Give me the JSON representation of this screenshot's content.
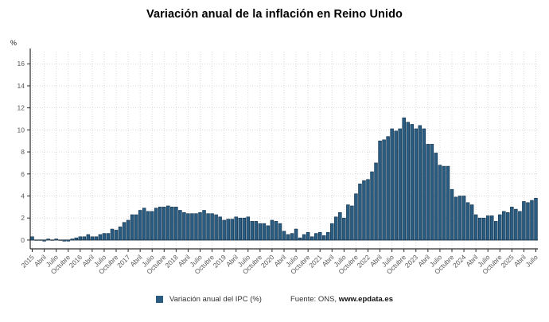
{
  "title": "Variación anual de la inflación en Reino Unido",
  "y_axis_unit_label": "%",
  "legend": {
    "series_label": "Variación anual del IPC (%)",
    "source_prefix": "Fuente: ONS, ",
    "source_link": "www.epdata.es"
  },
  "colors": {
    "bar_fill": "#2a5c82",
    "bar_stroke": "#14344d",
    "grid": "#d9d9d9",
    "axis": "#2b2b2b",
    "tick_text": "#595959",
    "title_text": "#000000"
  },
  "chart_data": {
    "type": "bar",
    "title": "Variación anual de la inflación en Reino Unido",
    "xlabel": "",
    "ylabel": "%",
    "ylim": [
      -0.8,
      17.1
    ],
    "y_ticks": [
      0,
      2,
      4,
      6,
      8,
      10,
      12,
      14,
      16
    ],
    "grid": true,
    "legend_position": "bottom",
    "x_tick_every": 3,
    "x_tick_labels": [
      "2015",
      "Abril",
      "Julio",
      "Octubre",
      "2016",
      "Abril",
      "Julio",
      "Octubre",
      "2017",
      "Abril",
      "Julio",
      "Octubre",
      "2018",
      "Abril",
      "Julio",
      "Octubre",
      "2019",
      "Abril",
      "Julio",
      "Octubre",
      "2020",
      "Abril",
      "Julio",
      "Octubre",
      "2021",
      "Abril",
      "Julio",
      "Octubre",
      "2022",
      "Abril",
      "Julio",
      "Octubre",
      "2023",
      "Abril",
      "Julio",
      "Octubre",
      "2024",
      "Abril",
      "Julio",
      "Octubre",
      "2025",
      "Abril",
      "Julio"
    ],
    "x_period": "monthly, January 2015 - July 2025",
    "series": [
      {
        "name": "Variación anual del IPC (%)",
        "values": [
          0.3,
          0.0,
          0.0,
          -0.1,
          0.1,
          0.0,
          0.1,
          0.0,
          -0.1,
          -0.1,
          0.1,
          0.2,
          0.3,
          0.3,
          0.5,
          0.3,
          0.3,
          0.5,
          0.6,
          0.6,
          1.0,
          0.9,
          1.2,
          1.6,
          1.8,
          2.3,
          2.3,
          2.7,
          2.9,
          2.6,
          2.6,
          2.9,
          3.0,
          3.0,
          3.1,
          3.0,
          3.0,
          2.7,
          2.5,
          2.4,
          2.4,
          2.4,
          2.5,
          2.7,
          2.4,
          2.4,
          2.3,
          2.1,
          1.8,
          1.9,
          1.9,
          2.1,
          2.0,
          2.0,
          2.1,
          1.7,
          1.7,
          1.5,
          1.5,
          1.3,
          1.8,
          1.7,
          1.5,
          0.8,
          0.5,
          0.6,
          1.0,
          0.2,
          0.5,
          0.7,
          0.3,
          0.6,
          0.7,
          0.4,
          0.7,
          1.5,
          2.1,
          2.5,
          2.0,
          3.2,
          3.1,
          4.2,
          5.1,
          5.4,
          5.5,
          6.2,
          7.0,
          9.0,
          9.1,
          9.4,
          10.1,
          9.9,
          10.1,
          11.1,
          10.7,
          10.5,
          10.1,
          10.4,
          10.1,
          8.7,
          8.7,
          7.9,
          6.8,
          6.7,
          6.7,
          4.6,
          3.9,
          4.0,
          4.0,
          3.4,
          3.2,
          2.3,
          2.0,
          2.0,
          2.2,
          2.2,
          1.7,
          2.3,
          2.6,
          2.5,
          3.0,
          2.8,
          2.6,
          3.5,
          3.4,
          3.6,
          3.8
        ]
      }
    ]
  }
}
